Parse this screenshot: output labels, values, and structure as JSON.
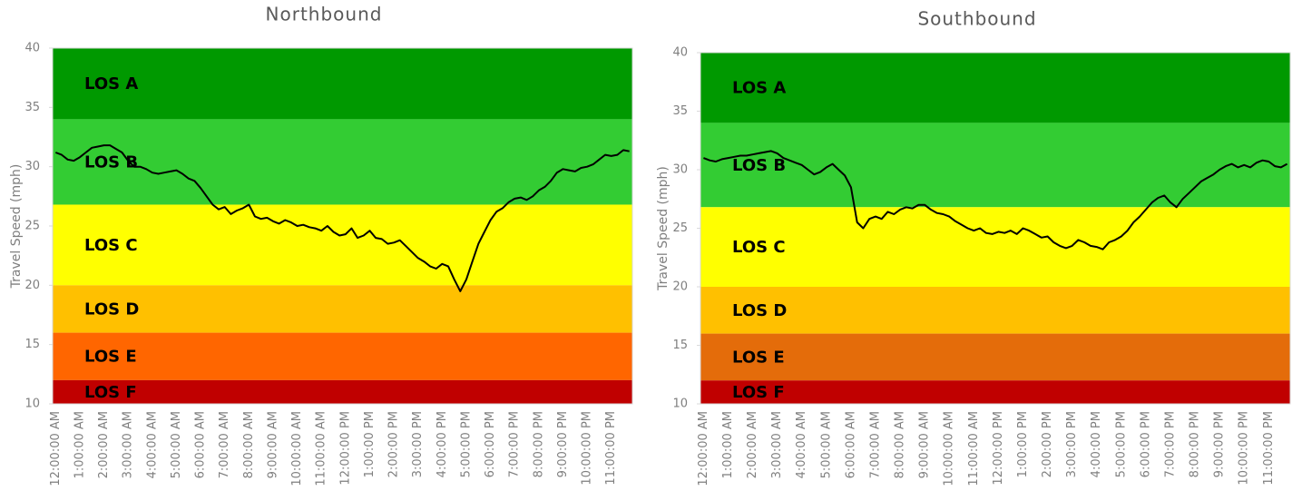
{
  "chart_data": [
    {
      "type": "line",
      "title": "Northbound",
      "y_label": "Travel Speed (mph)",
      "color": "#000000",
      "ylim": [
        10,
        40
      ],
      "yticks": [
        10,
        15,
        20,
        25,
        30,
        35,
        40
      ],
      "bands": [
        {
          "label": "LOS A",
          "from": 34,
          "to": 40,
          "color": "#009900"
        },
        {
          "label": "LOS B",
          "from": 26.8,
          "to": 34,
          "color": "#33cc33"
        },
        {
          "label": "LOS C",
          "from": 20,
          "to": 26.8,
          "color": "#ffff00"
        },
        {
          "label": "LOS D",
          "from": 16,
          "to": 20,
          "color": "#ffc000"
        },
        {
          "label": "LOS E",
          "from": 12,
          "to": 16,
          "color": "#ff6600"
        },
        {
          "label": "LOS F",
          "from": 10,
          "to": 12,
          "color": "#c00000"
        }
      ],
      "categories": [
        "12:00:00 AM",
        null,
        null,
        null,
        "1:00:00 AM",
        null,
        null,
        null,
        "2:00:00 AM",
        null,
        null,
        null,
        "3:00:00 AM",
        null,
        null,
        null,
        "4:00:00 AM",
        null,
        null,
        null,
        "5:00:00 AM",
        null,
        null,
        null,
        "6:00:00 AM",
        null,
        null,
        null,
        "7:00:00 AM",
        null,
        null,
        null,
        "8:00:00 AM",
        null,
        null,
        null,
        "9:00:00 AM",
        null,
        null,
        null,
        "10:00:00 AM",
        null,
        null,
        null,
        "11:00:00 AM",
        null,
        null,
        null,
        "12:00:00 PM",
        null,
        null,
        null,
        "1:00:00 PM",
        null,
        null,
        null,
        "2:00:00 PM",
        null,
        null,
        null,
        "3:00:00 PM",
        null,
        null,
        null,
        "4:00:00 PM",
        null,
        null,
        null,
        "5:00:00 PM",
        null,
        null,
        null,
        "6:00:00 PM",
        null,
        null,
        null,
        "7:00:00 PM",
        null,
        null,
        null,
        "8:00:00 PM",
        null,
        null,
        null,
        "9:00:00 PM",
        null,
        null,
        null,
        "10:00:00 PM",
        null,
        null,
        null,
        "11:00:00 PM",
        null,
        null,
        null
      ],
      "values": [
        31.2,
        31,
        30.6,
        30.5,
        30.8,
        31.2,
        31.6,
        31.7,
        31.8,
        31.8,
        31.5,
        31.2,
        30.5,
        30,
        30,
        29.8,
        29.5,
        29.4,
        29.5,
        29.6,
        29.7,
        29.4,
        29,
        28.8,
        28.2,
        27.5,
        26.8,
        26.4,
        26.6,
        26,
        26.3,
        26.5,
        26.8,
        25.8,
        25.6,
        25.7,
        25.4,
        25.2,
        25.5,
        25.3,
        25,
        25.1,
        24.9,
        24.8,
        24.6,
        25,
        24.5,
        24.2,
        24.3,
        24.8,
        24,
        24.2,
        24.6,
        24,
        23.9,
        23.5,
        23.6,
        23.8,
        23.3,
        22.8,
        22.3,
        22,
        21.6,
        21.4,
        21.8,
        21.6,
        20.5,
        19.5,
        20.5,
        22,
        23.5,
        24.5,
        25.5,
        26.2,
        26.5,
        27,
        27.3,
        27.4,
        27.2,
        27.5,
        28,
        28.3,
        28.8,
        29.5,
        29.8,
        29.7,
        29.6,
        29.9,
        30,
        30.2,
        30.6,
        31,
        30.9,
        31,
        31.4,
        31.3
      ]
    },
    {
      "type": "line",
      "title": "Southbound",
      "y_label": "Travel Speed (mph)",
      "color": "#000000",
      "ylim": [
        10,
        40
      ],
      "yticks": [
        10,
        15,
        20,
        25,
        30,
        35,
        40
      ],
      "bands": [
        {
          "label": "LOS A",
          "from": 34,
          "to": 40,
          "color": "#009900"
        },
        {
          "label": "LOS B",
          "from": 26.8,
          "to": 34,
          "color": "#33cc33"
        },
        {
          "label": "LOS C",
          "from": 20,
          "to": 26.8,
          "color": "#ffff00"
        },
        {
          "label": "LOS D",
          "from": 16,
          "to": 20,
          "color": "#ffc000"
        },
        {
          "label": "LOS E",
          "from": 12,
          "to": 16,
          "color": "#e46c0a"
        },
        {
          "label": "LOS F",
          "from": 10,
          "to": 12,
          "color": "#c00000"
        }
      ],
      "categories": [
        "12:00:00 AM",
        null,
        null,
        null,
        "1:00:00 AM",
        null,
        null,
        null,
        "2:00:00 AM",
        null,
        null,
        null,
        "3:00:00 AM",
        null,
        null,
        null,
        "4:00:00 AM",
        null,
        null,
        null,
        "5:00:00 AM",
        null,
        null,
        null,
        "6:00:00 AM",
        null,
        null,
        null,
        "7:00:00 AM",
        null,
        null,
        null,
        "8:00:00 AM",
        null,
        null,
        null,
        "9:00:00 AM",
        null,
        null,
        null,
        "10:00:00 AM",
        null,
        null,
        null,
        "11:00:00 AM",
        null,
        null,
        null,
        "12:00:00 PM",
        null,
        null,
        null,
        "1:00:00 PM",
        null,
        null,
        null,
        "2:00:00 PM",
        null,
        null,
        null,
        "3:00:00 PM",
        null,
        null,
        null,
        "4:00:00 PM",
        null,
        null,
        null,
        "5:00:00 PM",
        null,
        null,
        null,
        "6:00:00 PM",
        null,
        null,
        null,
        "7:00:00 PM",
        null,
        null,
        null,
        "8:00:00 PM",
        null,
        null,
        null,
        "9:00:00 PM",
        null,
        null,
        null,
        "10:00:00 PM",
        null,
        null,
        null,
        "11:00:00 PM",
        null,
        null,
        null
      ],
      "values": [
        31,
        30.8,
        30.7,
        30.9,
        31,
        31.1,
        31.2,
        31.2,
        31.3,
        31.4,
        31.5,
        31.6,
        31.4,
        31,
        30.8,
        30.6,
        30.4,
        30,
        29.6,
        29.8,
        30.2,
        30.5,
        30,
        29.5,
        28.5,
        25.5,
        25,
        25.8,
        26,
        25.8,
        26.4,
        26.2,
        26.6,
        26.8,
        26.7,
        27,
        27,
        26.6,
        26.3,
        26.2,
        26,
        25.6,
        25.3,
        25,
        24.8,
        25,
        24.6,
        24.5,
        24.7,
        24.6,
        24.8,
        24.5,
        25,
        24.8,
        24.5,
        24.2,
        24.3,
        23.8,
        23.5,
        23.3,
        23.5,
        24,
        23.8,
        23.5,
        23.4,
        23.2,
        23.8,
        24,
        24.3,
        24.8,
        25.5,
        26,
        26.6,
        27.2,
        27.6,
        27.8,
        27.2,
        26.8,
        27.5,
        28,
        28.5,
        29,
        29.3,
        29.6,
        30,
        30.3,
        30.5,
        30.2,
        30.4,
        30.2,
        30.6,
        30.8,
        30.7,
        30.3,
        30.2,
        30.5
      ]
    }
  ]
}
